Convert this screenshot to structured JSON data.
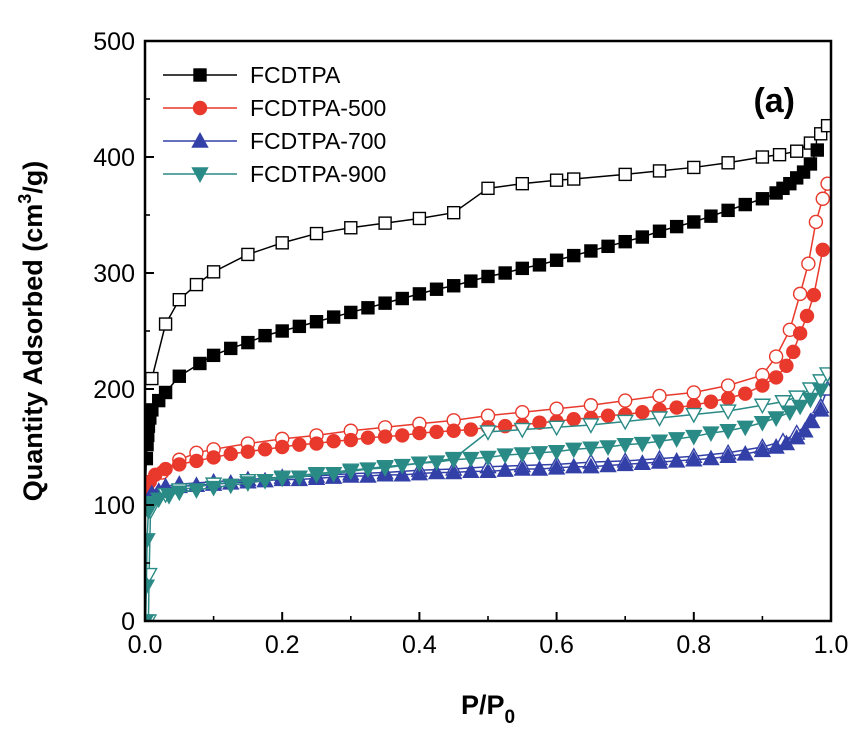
{
  "chart_data": {
    "type": "scatter",
    "panel_label": "(a)",
    "xlabel": "P/P",
    "xlabel_sub": "0",
    "ylabel_main": "Quantity Adsorbed (cm",
    "ylabel_sup": "3",
    "ylabel_tail": "/g)",
    "xlim": [
      0.0,
      1.0
    ],
    "ylim": [
      0,
      500
    ],
    "xticks": [
      "0.0",
      "0.2",
      "0.4",
      "0.6",
      "0.8",
      "1.0"
    ],
    "yticks": [
      "0",
      "100",
      "200",
      "300",
      "400",
      "500"
    ],
    "legend_position": "top-left",
    "series": [
      {
        "name": "FCDTPA",
        "color": "#000000",
        "marker": "square",
        "adsorption": [
          [
            0.001,
            120
          ],
          [
            0.002,
            140
          ],
          [
            0.003,
            152
          ],
          [
            0.004,
            160
          ],
          [
            0.005,
            168
          ],
          [
            0.007,
            175
          ],
          [
            0.01,
            182
          ],
          [
            0.02,
            190
          ],
          [
            0.03,
            197
          ],
          [
            0.05,
            211
          ],
          [
            0.08,
            222
          ],
          [
            0.1,
            229
          ],
          [
            0.125,
            235
          ],
          [
            0.15,
            240
          ],
          [
            0.175,
            246
          ],
          [
            0.2,
            250
          ],
          [
            0.225,
            254
          ],
          [
            0.25,
            258
          ],
          [
            0.275,
            262
          ],
          [
            0.3,
            266
          ],
          [
            0.325,
            270
          ],
          [
            0.35,
            274
          ],
          [
            0.375,
            278
          ],
          [
            0.4,
            282
          ],
          [
            0.425,
            286
          ],
          [
            0.45,
            289
          ],
          [
            0.475,
            293
          ],
          [
            0.5,
            297
          ],
          [
            0.525,
            300
          ],
          [
            0.55,
            304
          ],
          [
            0.575,
            307
          ],
          [
            0.6,
            311
          ],
          [
            0.625,
            315
          ],
          [
            0.65,
            319
          ],
          [
            0.675,
            323
          ],
          [
            0.7,
            327
          ],
          [
            0.725,
            331
          ],
          [
            0.75,
            336
          ],
          [
            0.775,
            340
          ],
          [
            0.8,
            344
          ],
          [
            0.825,
            349
          ],
          [
            0.85,
            354
          ],
          [
            0.875,
            359
          ],
          [
            0.9,
            364
          ],
          [
            0.92,
            369
          ],
          [
            0.93,
            373
          ],
          [
            0.94,
            377
          ],
          [
            0.95,
            382
          ],
          [
            0.96,
            387
          ],
          [
            0.97,
            394
          ],
          [
            0.98,
            406
          ]
        ],
        "desorption": [
          [
            0.01,
            209
          ],
          [
            0.03,
            256
          ],
          [
            0.05,
            277
          ],
          [
            0.075,
            290
          ],
          [
            0.1,
            301
          ],
          [
            0.15,
            316
          ],
          [
            0.2,
            326
          ],
          [
            0.25,
            334
          ],
          [
            0.3,
            339
          ],
          [
            0.35,
            343
          ],
          [
            0.4,
            347
          ],
          [
            0.45,
            352
          ],
          [
            0.5,
            373
          ],
          [
            0.55,
            377
          ],
          [
            0.6,
            380
          ],
          [
            0.625,
            381
          ],
          [
            0.7,
            385
          ],
          [
            0.75,
            388
          ],
          [
            0.8,
            391
          ],
          [
            0.85,
            395
          ],
          [
            0.9,
            400
          ],
          [
            0.925,
            402
          ],
          [
            0.95,
            405
          ],
          [
            0.97,
            412
          ],
          [
            0.985,
            420
          ],
          [
            0.995,
            427
          ]
        ]
      },
      {
        "name": "FCDTPA-500",
        "color": "#e8392c",
        "marker": "circle",
        "adsorption": [
          [
            0.001,
            110
          ],
          [
            0.003,
            115
          ],
          [
            0.007,
            120
          ],
          [
            0.015,
            126
          ],
          [
            0.03,
            131
          ],
          [
            0.05,
            135
          ],
          [
            0.075,
            138
          ],
          [
            0.1,
            141
          ],
          [
            0.125,
            144
          ],
          [
            0.15,
            146
          ],
          [
            0.175,
            148
          ],
          [
            0.2,
            150
          ],
          [
            0.225,
            152
          ],
          [
            0.25,
            153
          ],
          [
            0.275,
            155
          ],
          [
            0.3,
            156
          ],
          [
            0.325,
            158
          ],
          [
            0.35,
            159
          ],
          [
            0.375,
            160
          ],
          [
            0.4,
            162
          ],
          [
            0.425,
            163
          ],
          [
            0.45,
            164
          ],
          [
            0.475,
            165
          ],
          [
            0.5,
            167
          ],
          [
            0.525,
            168
          ],
          [
            0.55,
            169
          ],
          [
            0.575,
            171
          ],
          [
            0.6,
            172
          ],
          [
            0.625,
            174
          ],
          [
            0.65,
            175
          ],
          [
            0.675,
            177
          ],
          [
            0.7,
            178
          ],
          [
            0.725,
            180
          ],
          [
            0.75,
            182
          ],
          [
            0.775,
            184
          ],
          [
            0.8,
            186
          ],
          [
            0.825,
            189
          ],
          [
            0.85,
            192
          ],
          [
            0.875,
            196
          ],
          [
            0.9,
            203
          ],
          [
            0.92,
            210
          ],
          [
            0.935,
            220
          ],
          [
            0.945,
            232
          ],
          [
            0.955,
            248
          ],
          [
            0.965,
            263
          ],
          [
            0.975,
            281
          ],
          [
            0.988,
            320
          ]
        ],
        "desorption": [
          [
            0.025,
            128
          ],
          [
            0.05,
            139
          ],
          [
            0.075,
            145
          ],
          [
            0.1,
            148
          ],
          [
            0.15,
            153
          ],
          [
            0.2,
            157
          ],
          [
            0.25,
            160
          ],
          [
            0.3,
            164
          ],
          [
            0.35,
            167
          ],
          [
            0.4,
            170
          ],
          [
            0.45,
            173
          ],
          [
            0.5,
            177
          ],
          [
            0.55,
            180
          ],
          [
            0.6,
            183
          ],
          [
            0.65,
            186
          ],
          [
            0.7,
            190
          ],
          [
            0.75,
            194
          ],
          [
            0.8,
            197
          ],
          [
            0.85,
            203
          ],
          [
            0.9,
            212
          ],
          [
            0.92,
            228
          ],
          [
            0.94,
            251
          ],
          [
            0.955,
            282
          ],
          [
            0.967,
            308
          ],
          [
            0.978,
            344
          ],
          [
            0.988,
            364
          ],
          [
            0.995,
            377
          ]
        ]
      },
      {
        "name": "FCDTPA-700",
        "color": "#3340a8",
        "marker": "triangle-up",
        "adsorption": [
          [
            0.002,
            100
          ],
          [
            0.005,
            105
          ],
          [
            0.01,
            109
          ],
          [
            0.02,
            112
          ],
          [
            0.03,
            114
          ],
          [
            0.05,
            116
          ],
          [
            0.075,
            117
          ],
          [
            0.1,
            118
          ],
          [
            0.125,
            119
          ],
          [
            0.15,
            120
          ],
          [
            0.175,
            121
          ],
          [
            0.2,
            122
          ],
          [
            0.225,
            122
          ],
          [
            0.25,
            123
          ],
          [
            0.275,
            124
          ],
          [
            0.3,
            125
          ],
          [
            0.325,
            125
          ],
          [
            0.35,
            126
          ],
          [
            0.375,
            126
          ],
          [
            0.4,
            127
          ],
          [
            0.425,
            128
          ],
          [
            0.45,
            128
          ],
          [
            0.475,
            129
          ],
          [
            0.5,
            129
          ],
          [
            0.525,
            130
          ],
          [
            0.55,
            131
          ],
          [
            0.575,
            131
          ],
          [
            0.6,
            132
          ],
          [
            0.625,
            133
          ],
          [
            0.65,
            133
          ],
          [
            0.675,
            134
          ],
          [
            0.7,
            135
          ],
          [
            0.725,
            136
          ],
          [
            0.75,
            137
          ],
          [
            0.775,
            138
          ],
          [
            0.8,
            139
          ],
          [
            0.825,
            140
          ],
          [
            0.85,
            142
          ],
          [
            0.875,
            144
          ],
          [
            0.9,
            147
          ],
          [
            0.92,
            150
          ],
          [
            0.935,
            153
          ],
          [
            0.95,
            158
          ],
          [
            0.962,
            164
          ],
          [
            0.972,
            172
          ],
          [
            0.985,
            182
          ]
        ],
        "desorption": [
          [
            0.01,
            110
          ],
          [
            0.03,
            116
          ],
          [
            0.05,
            118
          ],
          [
            0.1,
            120
          ],
          [
            0.15,
            122
          ],
          [
            0.2,
            124
          ],
          [
            0.25,
            125
          ],
          [
            0.3,
            127
          ],
          [
            0.35,
            128
          ],
          [
            0.4,
            130
          ],
          [
            0.45,
            131
          ],
          [
            0.5,
            133
          ],
          [
            0.55,
            134
          ],
          [
            0.6,
            135
          ],
          [
            0.65,
            137
          ],
          [
            0.7,
            138
          ],
          [
            0.75,
            140
          ],
          [
            0.8,
            142
          ],
          [
            0.85,
            145
          ],
          [
            0.9,
            150
          ],
          [
            0.93,
            155
          ],
          [
            0.95,
            162
          ],
          [
            0.97,
            172
          ],
          [
            0.985,
            185
          ],
          [
            0.995,
            200
          ]
        ]
      },
      {
        "name": "FCDTPA-900",
        "color": "#2a8a86",
        "marker": "triangle-down",
        "adsorption": [
          [
            0.001,
            0
          ],
          [
            0.002,
            30
          ],
          [
            0.003,
            70
          ],
          [
            0.005,
            95
          ],
          [
            0.01,
            101
          ],
          [
            0.02,
            105
          ],
          [
            0.035,
            108
          ],
          [
            0.05,
            111
          ],
          [
            0.075,
            113
          ],
          [
            0.1,
            115
          ],
          [
            0.125,
            117
          ],
          [
            0.15,
            119
          ],
          [
            0.175,
            121
          ],
          [
            0.2,
            123
          ],
          [
            0.225,
            124
          ],
          [
            0.25,
            126
          ],
          [
            0.275,
            127
          ],
          [
            0.3,
            129
          ],
          [
            0.325,
            131
          ],
          [
            0.35,
            132
          ],
          [
            0.375,
            134
          ],
          [
            0.4,
            136
          ],
          [
            0.425,
            137
          ],
          [
            0.45,
            139
          ],
          [
            0.475,
            140
          ],
          [
            0.5,
            141
          ],
          [
            0.525,
            143
          ],
          [
            0.55,
            144
          ],
          [
            0.575,
            145
          ],
          [
            0.6,
            146
          ],
          [
            0.625,
            148
          ],
          [
            0.65,
            149
          ],
          [
            0.675,
            150
          ],
          [
            0.7,
            152
          ],
          [
            0.725,
            153
          ],
          [
            0.75,
            155
          ],
          [
            0.775,
            157
          ],
          [
            0.8,
            159
          ],
          [
            0.825,
            162
          ],
          [
            0.85,
            164
          ],
          [
            0.875,
            167
          ],
          [
            0.9,
            171
          ],
          [
            0.92,
            175
          ],
          [
            0.94,
            180
          ],
          [
            0.955,
            185
          ],
          [
            0.97,
            191
          ],
          [
            0.985,
            199
          ]
        ],
        "desorption": [
          [
            0.005,
            0
          ],
          [
            0.006,
            40
          ],
          [
            0.008,
            95
          ],
          [
            0.01,
            102
          ],
          [
            0.03,
            109
          ],
          [
            0.05,
            113
          ],
          [
            0.1,
            118
          ],
          [
            0.15,
            121
          ],
          [
            0.2,
            124
          ],
          [
            0.25,
            127
          ],
          [
            0.3,
            130
          ],
          [
            0.35,
            133
          ],
          [
            0.4,
            136
          ],
          [
            0.45,
            140
          ],
          [
            0.5,
            163
          ],
          [
            0.55,
            165
          ],
          [
            0.6,
            167
          ],
          [
            0.65,
            169
          ],
          [
            0.7,
            172
          ],
          [
            0.75,
            175
          ],
          [
            0.8,
            178
          ],
          [
            0.85,
            181
          ],
          [
            0.9,
            186
          ],
          [
            0.93,
            189
          ],
          [
            0.95,
            193
          ],
          [
            0.97,
            200
          ],
          [
            0.985,
            207
          ],
          [
            0.995,
            213
          ]
        ]
      }
    ]
  }
}
